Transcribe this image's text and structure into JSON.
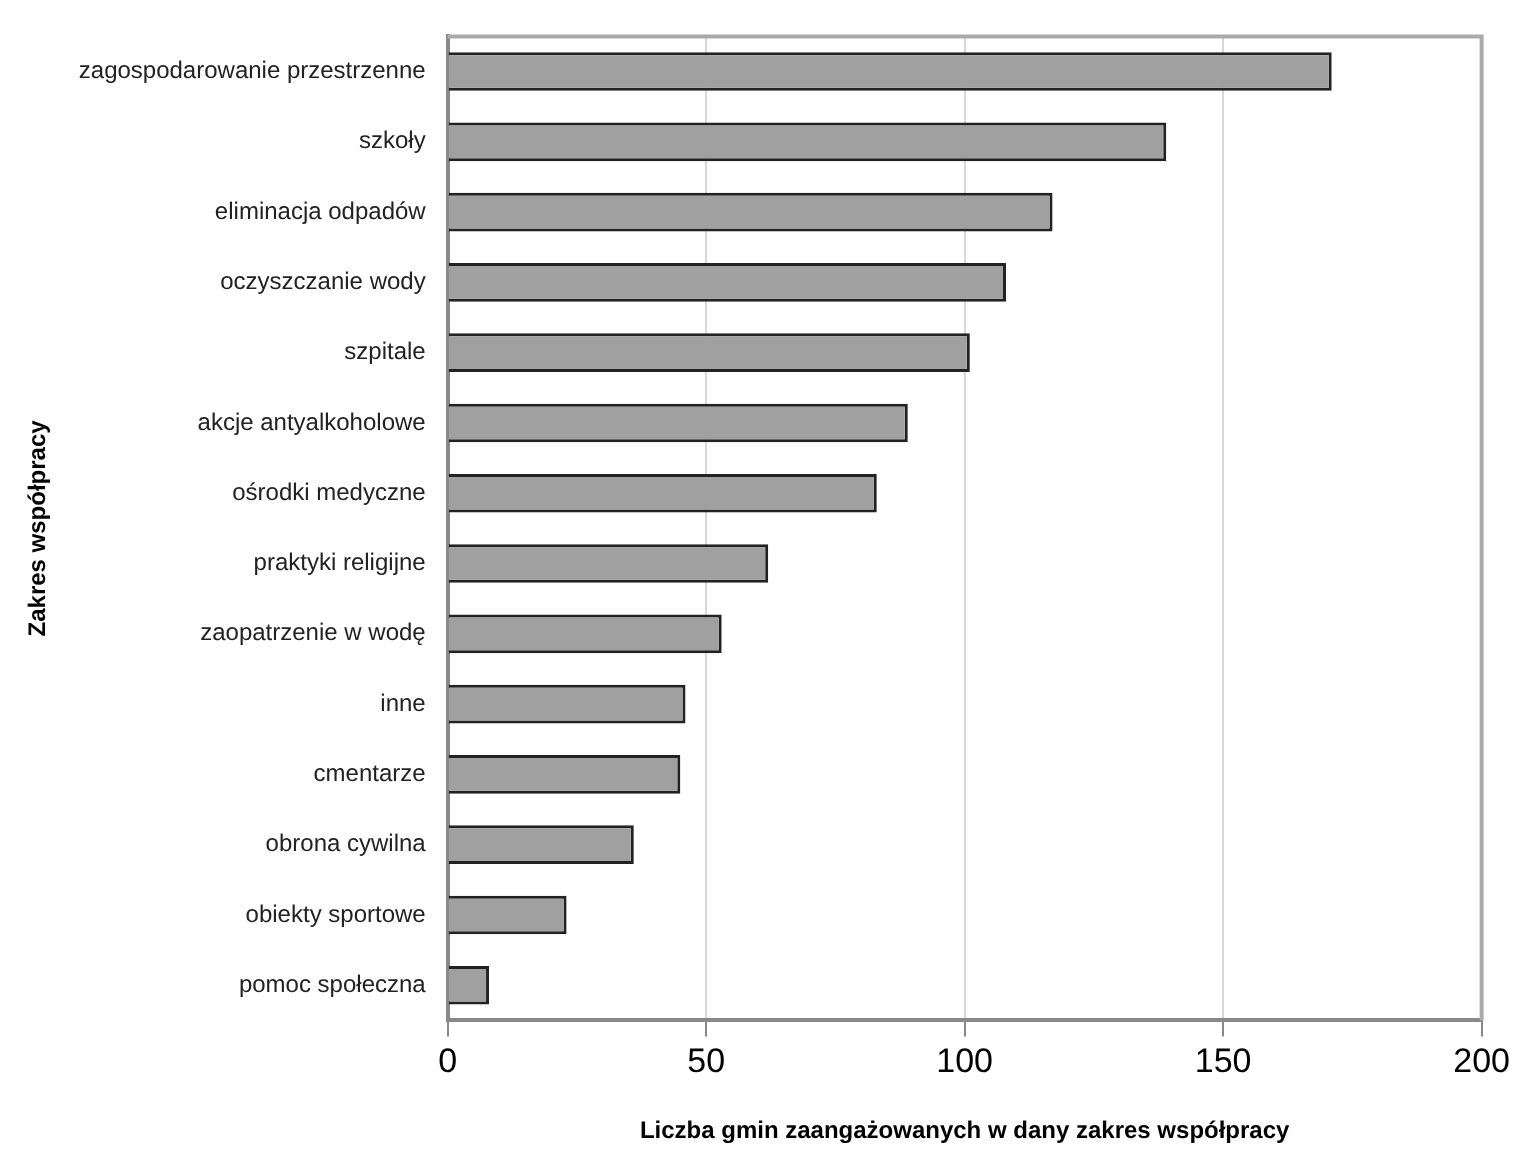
{
  "chart_data": {
    "type": "bar",
    "orientation": "horizontal",
    "xlabel": "Liczba gmin zaangażowanych w dany zakres współpracy",
    "ylabel": "Zakres współpracy",
    "categories": [
      "zagospodarowanie przestrzenne",
      "szkoły",
      "eliminacja odpadów",
      "oczyszczanie wody",
      "szpitale",
      "akcje antyalkoholowe",
      "ośrodki medyczne",
      "praktyki religijne",
      "zaopatrzenie w wodę",
      "inne",
      "cmentarze",
      "obrona cywilna",
      "obiekty sportowe",
      "pomoc społeczna"
    ],
    "values": [
      171,
      139,
      117,
      108,
      101,
      89,
      83,
      62,
      53,
      46,
      45,
      36,
      23,
      8
    ],
    "color": "#a0a0a0",
    "xlim": [
      0,
      200
    ],
    "xticks": [
      0,
      50,
      100,
      150,
      200
    ],
    "grid": "x",
    "legend": false
  }
}
